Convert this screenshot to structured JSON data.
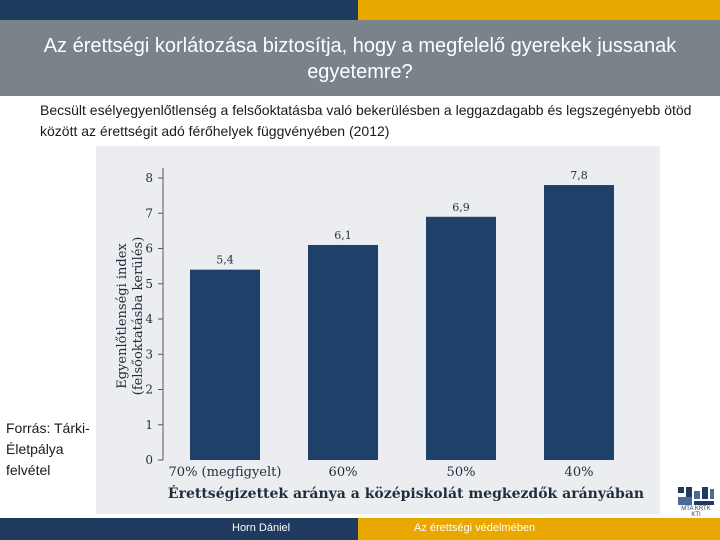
{
  "slide": {
    "title": "Az érettségi korlátozása biztosítja, hogy a megfelelő gyerekek jussanak egyetemre?",
    "subtitle": "Becsült esélyegyenlőtlenség a felsőoktatásba való bekerülésben a leggazdagabb és legszegényebb ötöd között az érettségit adó férőhelyek függvényében (2012)",
    "source": "Forrás: Tárki-Életpálya felvétel",
    "footer_author": "Horn Dániel",
    "footer_topic": "Az érettségi védelmében",
    "logo_text": "MTA KRTK KTI"
  },
  "colors": {
    "bar": "#1f4068",
    "top_left": "#1f3a5f",
    "top_right": "#e8a800",
    "title_band": "#7a828a"
  },
  "chart_data": {
    "type": "bar",
    "categories": [
      "70% (megfigyelt)",
      "60%",
      "50%",
      "40%"
    ],
    "values": [
      5.4,
      6.1,
      6.9,
      7.8
    ],
    "value_labels": [
      "5,4",
      "6,1",
      "6,9",
      "7,8"
    ],
    "title": "",
    "xlabel": "Érettségizettek aránya a középiskolát megkezdők arányában",
    "ylabel": "Egyenlőtlenségi index (felsőoktatásba kerülés)",
    "ylabel_lines": [
      "Egyenlőtlenségi index",
      "(felsőoktatásba kerülés)"
    ],
    "ylim": [
      0,
      8
    ],
    "yticks": [
      0,
      1,
      2,
      3,
      4,
      5,
      6,
      7,
      8
    ],
    "grid": false,
    "legend": "none"
  }
}
